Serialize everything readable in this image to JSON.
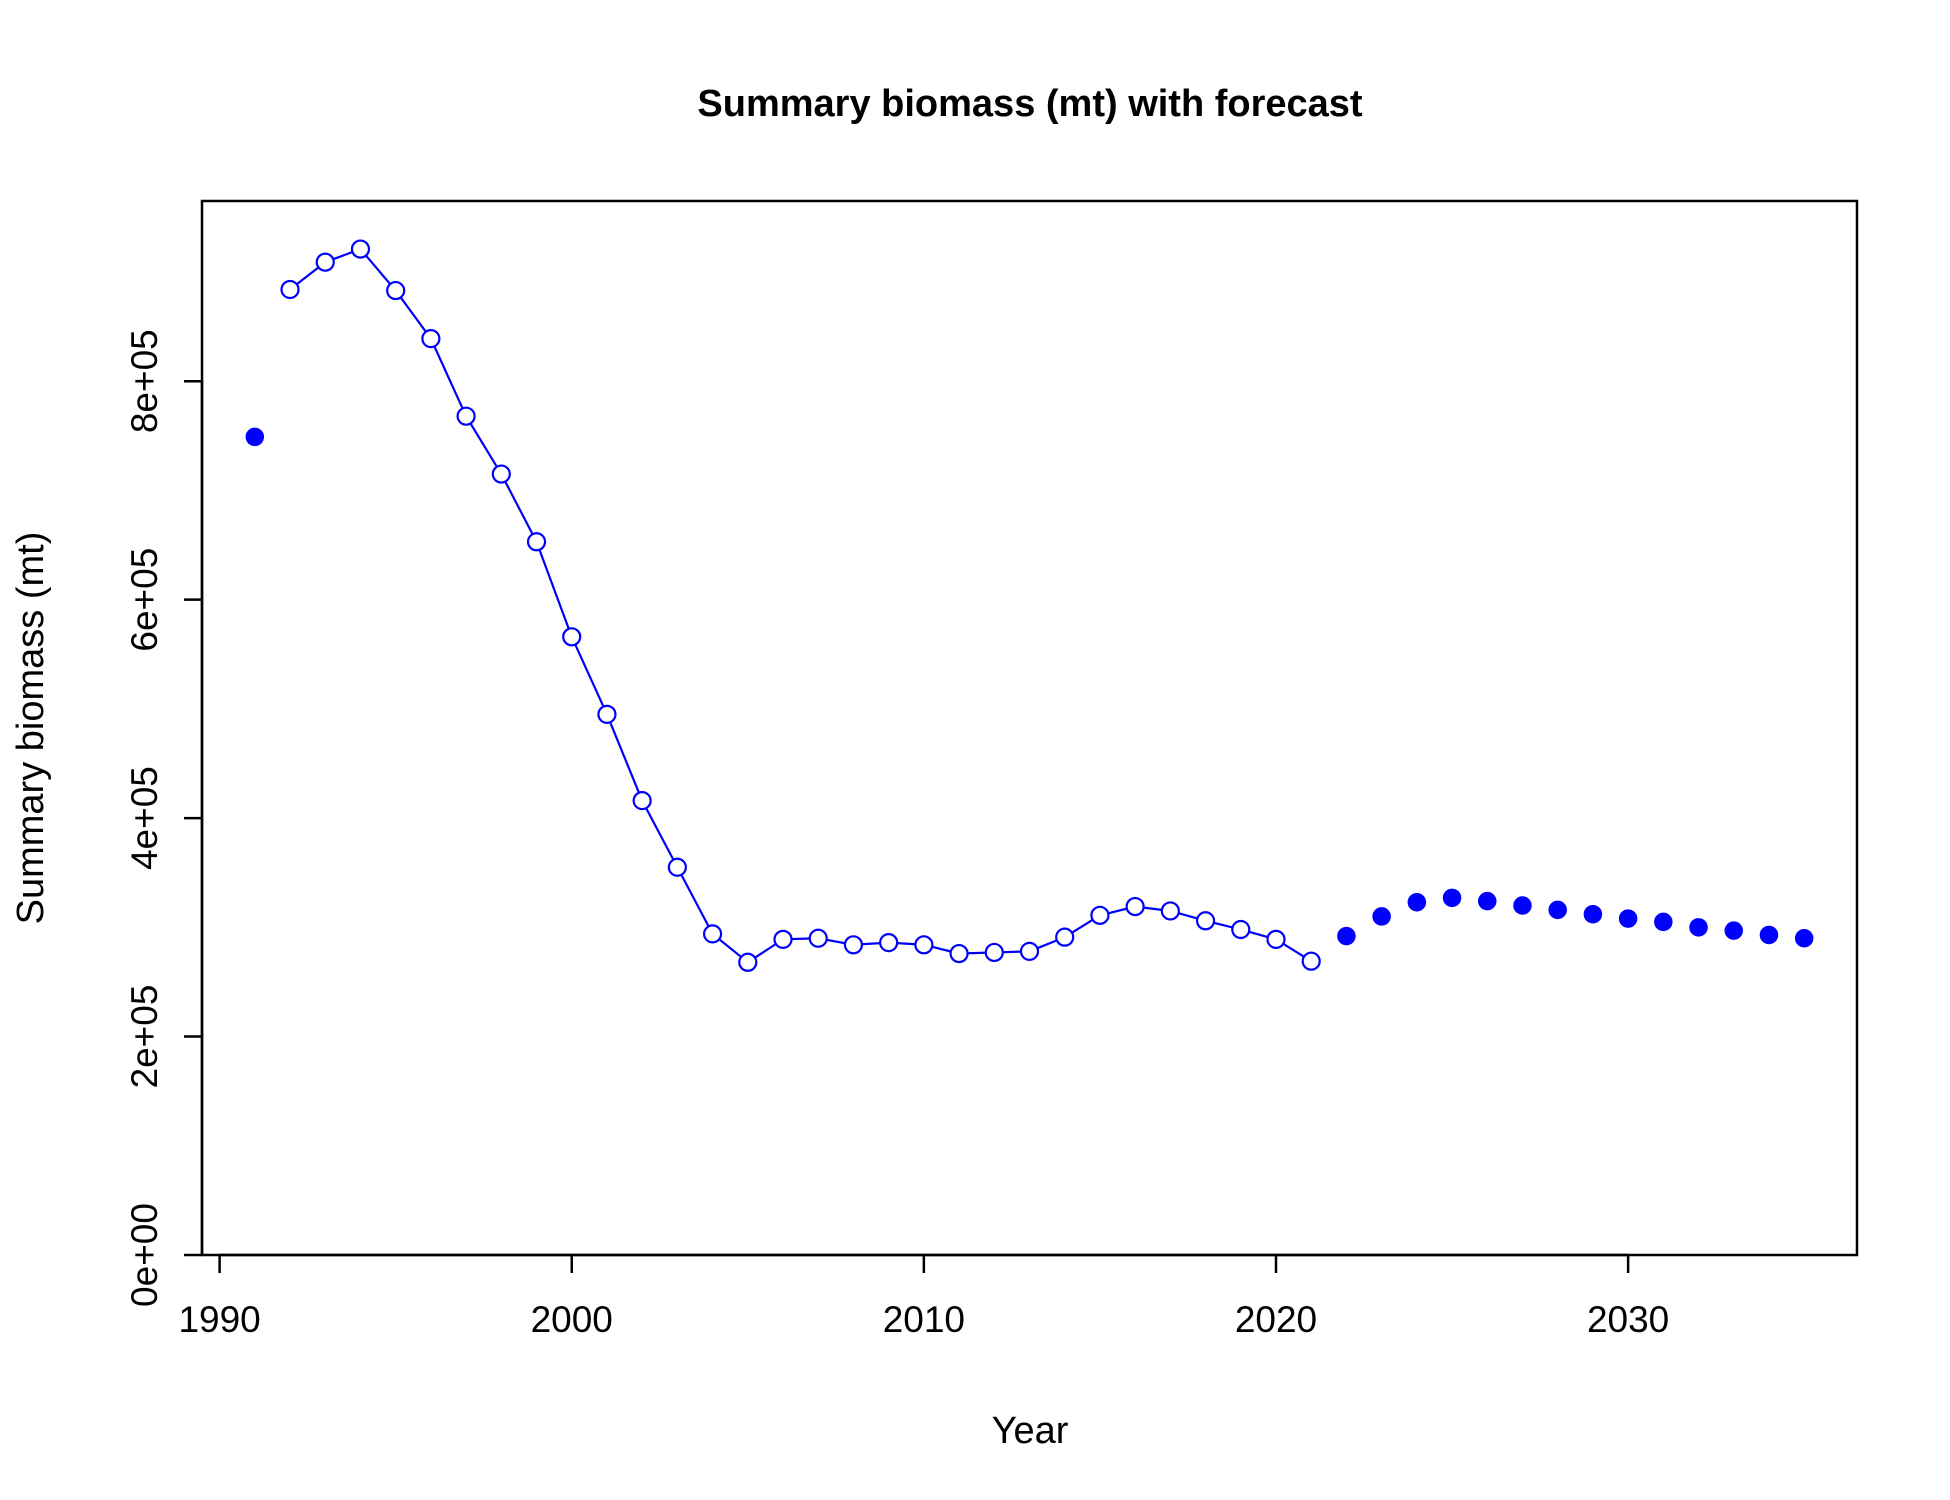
{
  "chart_data": {
    "type": "scatter",
    "title": "Summary biomass (mt) with forecast",
    "xlabel": "Year",
    "ylabel": "Summary biomass (mt)",
    "xlim": [
      1989.5,
      2036.5
    ],
    "ylim": [
      0,
      965000
    ],
    "xticks": [
      {
        "value": 1990,
        "label": "1990"
      },
      {
        "value": 2000,
        "label": "2000"
      },
      {
        "value": 2010,
        "label": "2010"
      },
      {
        "value": 2020,
        "label": "2020"
      },
      {
        "value": 2030,
        "label": "2030"
      }
    ],
    "yticks": [
      {
        "value": 0,
        "label": "0e+00"
      },
      {
        "value": 200000,
        "label": "2e+05"
      },
      {
        "value": 400000,
        "label": "4e+05"
      },
      {
        "value": 600000,
        "label": "6e+05"
      },
      {
        "value": 800000,
        "label": "8e+05"
      }
    ],
    "grid": false,
    "legend": "none",
    "color": "#0000ff",
    "series": [
      {
        "style": "filled-point",
        "x": [
          1991
        ],
        "y": [
          749000
        ]
      },
      {
        "style": "line-open-circle",
        "x": [
          1992,
          1993,
          1994,
          1995,
          1996,
          1997,
          1998,
          1999,
          2000,
          2001,
          2002,
          2003,
          2004,
          2005,
          2006,
          2007,
          2008,
          2009,
          2010,
          2011,
          2012,
          2013,
          2014,
          2015,
          2016,
          2017,
          2018,
          2019,
          2020,
          2021
        ],
        "y": [
          884000,
          909000,
          921000,
          883000,
          839000,
          768000,
          715000,
          653000,
          566000,
          495000,
          416000,
          355000,
          294000,
          268000,
          289000,
          290000,
          284000,
          286000,
          284000,
          276000,
          277000,
          278000,
          291000,
          311000,
          319000,
          315000,
          306000,
          298000,
          289000,
          269000
        ]
      },
      {
        "style": "filled-point",
        "x": [
          2022,
          2023,
          2024,
          2025,
          2026,
          2027,
          2028,
          2029,
          2030,
          2031,
          2032,
          2033,
          2034,
          2035
        ],
        "y": [
          292000,
          310000,
          323000,
          327000,
          324000,
          320000,
          316000,
          312000,
          308000,
          305000,
          300000,
          297000,
          293000,
          290000
        ]
      }
    ]
  }
}
